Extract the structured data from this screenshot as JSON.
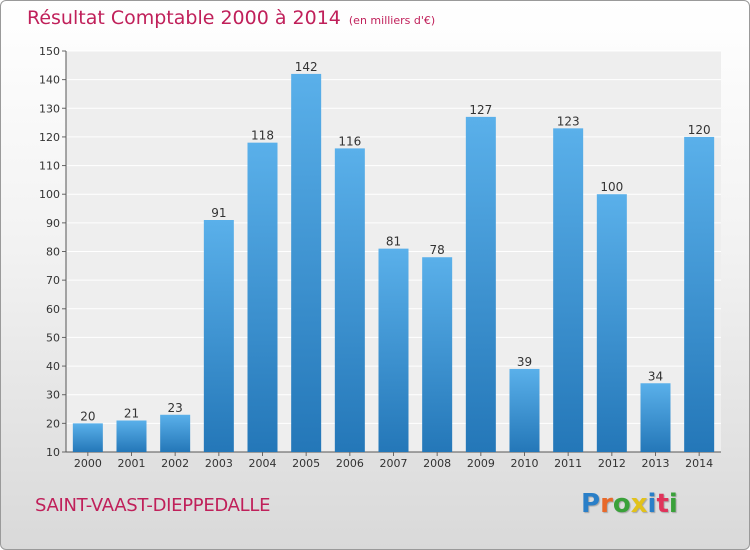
{
  "header": {
    "title": "Résultat Comptable 2000 à 2014",
    "subtitle": "(en milliers d'€)"
  },
  "footer": {
    "commune": "SAINT-VAAST-DIEPPEDALLE",
    "logo_letters": [
      "P",
      "r",
      "o",
      "x",
      "i",
      "t",
      "i"
    ],
    "logo_colors": [
      "#2a7fc8",
      "#e8692a",
      "#3aa13a",
      "#e2c21b",
      "#2a7fc8",
      "#e0335a",
      "#3aa13a"
    ]
  },
  "colors": {
    "title": "#c0205a",
    "bar_light": "#5ab0ea",
    "bar_dark": "#2477b8"
  },
  "chart_data": {
    "type": "bar",
    "title": "Résultat Comptable 2000 à 2014",
    "subtitle": "(en milliers d'€)",
    "categories": [
      "2000",
      "2001",
      "2002",
      "2003",
      "2004",
      "2005",
      "2006",
      "2007",
      "2008",
      "2009",
      "2010",
      "2011",
      "2012",
      "2013",
      "2014"
    ],
    "values": [
      20,
      21,
      23,
      91,
      118,
      142,
      116,
      81,
      78,
      127,
      39,
      123,
      100,
      34,
      120
    ],
    "ylim": [
      10,
      150
    ],
    "yticks": [
      10,
      20,
      30,
      40,
      50,
      60,
      70,
      80,
      90,
      100,
      110,
      120,
      130,
      140,
      150
    ],
    "grid": true
  }
}
